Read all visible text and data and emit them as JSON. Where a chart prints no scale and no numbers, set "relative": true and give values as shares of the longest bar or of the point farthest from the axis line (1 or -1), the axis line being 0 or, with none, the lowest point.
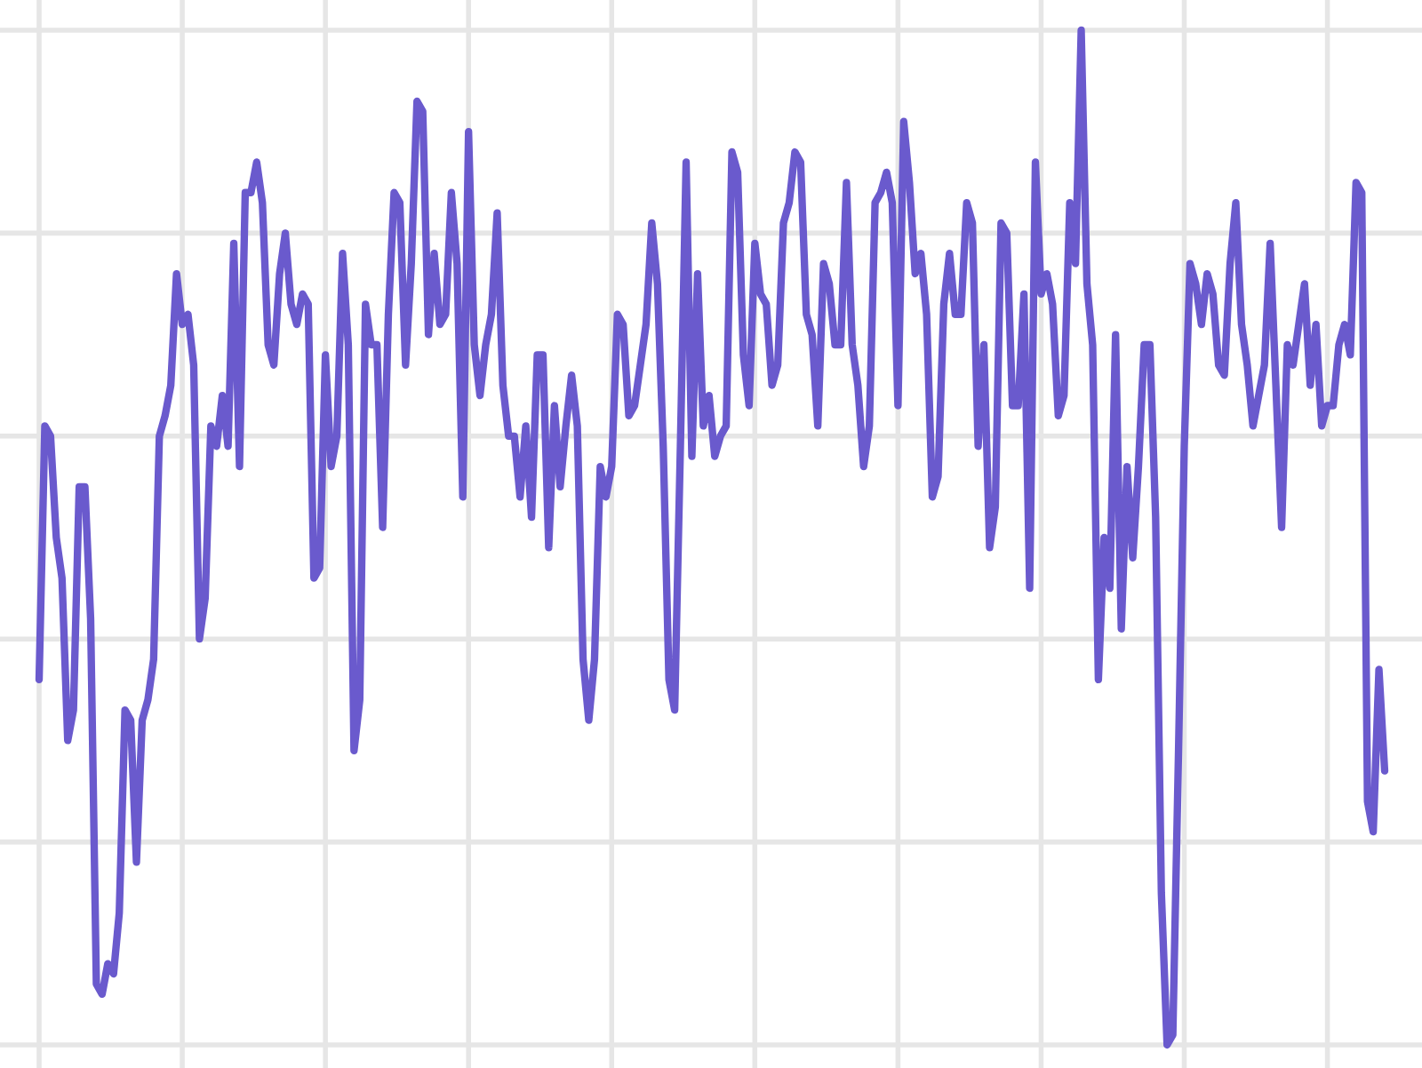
{
  "chart_data": {
    "type": "line",
    "relative": true,
    "grid": true,
    "tick_labels": false,
    "legend": false,
    "categories": [
      null,
      null,
      null,
      null,
      null,
      null,
      null,
      null,
      null,
      null,
      null,
      null,
      null,
      null,
      null,
      null,
      null,
      null,
      null,
      null,
      null,
      null,
      null,
      null,
      null,
      null,
      null,
      null,
      null,
      null,
      null,
      null,
      null,
      null,
      null,
      null,
      null,
      null,
      null,
      null,
      null,
      null,
      null,
      null,
      null,
      null,
      null,
      null,
      null,
      null,
      null,
      null,
      null,
      null,
      null,
      null,
      null,
      null,
      null,
      null,
      null,
      null,
      null,
      null,
      null,
      null,
      null,
      null,
      null,
      null,
      null,
      null,
      null,
      null,
      null,
      null,
      null,
      null,
      null,
      null,
      null,
      null,
      null,
      null,
      null,
      null,
      null,
      null,
      null,
      null,
      null,
      null,
      null,
      null,
      null,
      null,
      null,
      null,
      null,
      null,
      null,
      null,
      null,
      null,
      null,
      null,
      null,
      null,
      null,
      null,
      null,
      null,
      null,
      null,
      null,
      null,
      null,
      null,
      null,
      null,
      null,
      null,
      null,
      null,
      null,
      null,
      null,
      null,
      null,
      null,
      null,
      null,
      null,
      null,
      null,
      null,
      null,
      null,
      null,
      null,
      null,
      null,
      null,
      null,
      null,
      null,
      null,
      null,
      null,
      null,
      null,
      null,
      null,
      null,
      null,
      null,
      null,
      null,
      null,
      null,
      null,
      null,
      null,
      null,
      null,
      null,
      null,
      null,
      null,
      null,
      null,
      null,
      null,
      null,
      null,
      null,
      null,
      null,
      null,
      null,
      null,
      null,
      null,
      null,
      null,
      null,
      null,
      null,
      null,
      null,
      null,
      null,
      null,
      null,
      null,
      null,
      null,
      null,
      null,
      null,
      null,
      null,
      null,
      null,
      null,
      null,
      null,
      null,
      null,
      null,
      null,
      null,
      null,
      null,
      null,
      null,
      null,
      null,
      null,
      null,
      null,
      null,
      null,
      null,
      null,
      null,
      null,
      null,
      null,
      null,
      null,
      null,
      null,
      null,
      null,
      null
    ],
    "series": [
      {
        "color": "#6a5acd",
        "values": [
          0.36,
          0.61,
          0.6,
          0.5,
          0.46,
          0.3,
          0.33,
          0.55,
          0.55,
          0.42,
          0.06,
          0.05,
          0.08,
          0.07,
          0.13,
          0.33,
          0.32,
          0.18,
          0.32,
          0.34,
          0.38,
          0.6,
          0.62,
          0.65,
          0.76,
          0.71,
          0.72,
          0.67,
          0.4,
          0.44,
          0.61,
          0.59,
          0.64,
          0.59,
          0.79,
          0.57,
          0.84,
          0.84,
          0.87,
          0.83,
          0.69,
          0.67,
          0.76,
          0.8,
          0.73,
          0.71,
          0.74,
          0.73,
          0.46,
          0.47,
          0.68,
          0.57,
          0.6,
          0.78,
          0.69,
          0.29,
          0.34,
          0.73,
          0.69,
          0.69,
          0.51,
          0.72,
          0.84,
          0.83,
          0.67,
          0.77,
          0.93,
          0.92,
          0.7,
          0.78,
          0.71,
          0.72,
          0.84,
          0.77,
          0.54,
          0.9,
          0.69,
          0.64,
          0.69,
          0.72,
          0.82,
          0.65,
          0.6,
          0.6,
          0.54,
          0.61,
          0.52,
          0.68,
          0.68,
          0.49,
          0.63,
          0.55,
          0.61,
          0.66,
          0.61,
          0.38,
          0.32,
          0.38,
          0.57,
          0.54,
          0.57,
          0.72,
          0.71,
          0.62,
          0.63,
          0.67,
          0.71,
          0.81,
          0.75,
          0.59,
          0.36,
          0.33,
          0.59,
          0.87,
          0.58,
          0.76,
          0.61,
          0.64,
          0.58,
          0.6,
          0.61,
          0.88,
          0.86,
          0.68,
          0.63,
          0.79,
          0.74,
          0.73,
          0.65,
          0.67,
          0.81,
          0.83,
          0.88,
          0.87,
          0.72,
          0.7,
          0.61,
          0.77,
          0.75,
          0.69,
          0.69,
          0.85,
          0.69,
          0.65,
          0.57,
          0.61,
          0.83,
          0.84,
          0.86,
          0.83,
          0.63,
          0.91,
          0.85,
          0.76,
          0.78,
          0.72,
          0.54,
          0.56,
          0.73,
          0.78,
          0.72,
          0.72,
          0.83,
          0.81,
          0.59,
          0.69,
          0.49,
          0.53,
          0.81,
          0.8,
          0.63,
          0.63,
          0.74,
          0.45,
          0.87,
          0.74,
          0.76,
          0.73,
          0.62,
          0.64,
          0.83,
          0.77,
          1,
          0.75,
          0.69,
          0.36,
          0.5,
          0.45,
          0.7,
          0.41,
          0.57,
          0.48,
          0.57,
          0.69,
          0.69,
          0.52,
          0.15,
          0,
          0.01,
          0.29,
          0.59,
          0.77,
          0.75,
          0.71,
          0.76,
          0.74,
          0.67,
          0.66,
          0.77,
          0.83,
          0.71,
          0.67,
          0.61,
          0.64,
          0.67,
          0.79,
          0.65,
          0.51,
          0.69,
          0.67,
          0.71,
          0.75,
          0.65,
          0.71,
          0.61,
          0.63,
          0.63,
          0.69,
          0.71,
          0.68,
          0.85,
          0.84,
          0.24,
          0.21,
          0.37,
          0.27
        ]
      }
    ]
  }
}
